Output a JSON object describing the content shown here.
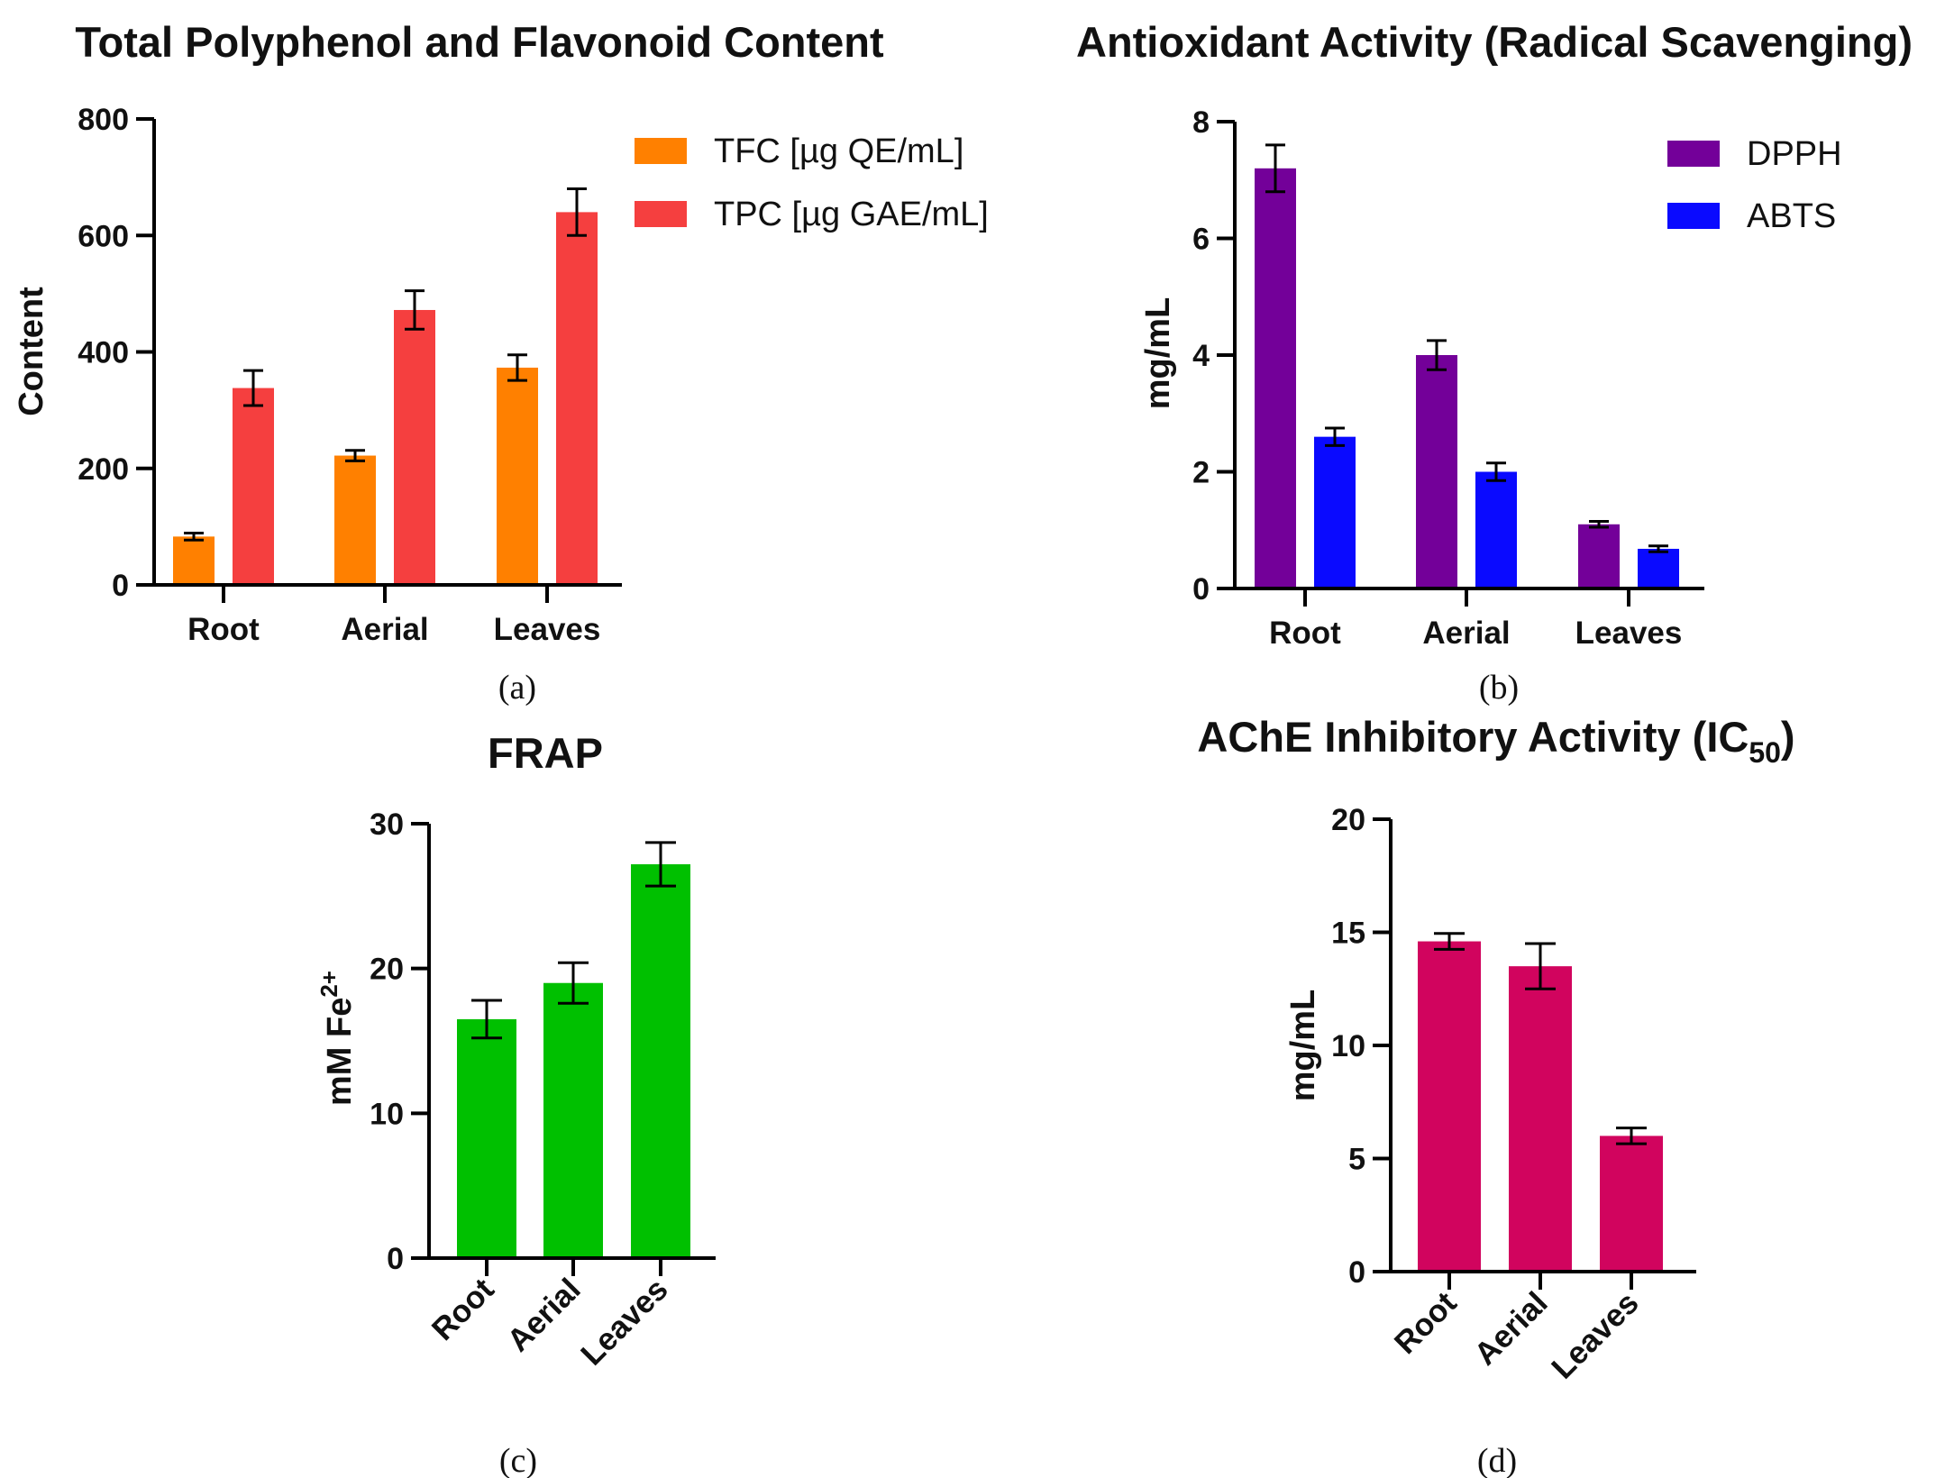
{
  "chart_data": [
    {
      "id": "a",
      "type": "bar",
      "title": "Total Polyphenol and Flavonoid Content",
      "panel_label": "(a)",
      "ylabel": "Content",
      "xlabel": "",
      "ylim": [
        0,
        800
      ],
      "yticks": [
        "0",
        "200",
        "400",
        "600",
        "800"
      ],
      "categories": [
        "Root",
        "Aerial",
        "Leaves"
      ],
      "legend_position": "right",
      "series": [
        {
          "name": "TFC [µg QE/mL]",
          "color": "#ff8000",
          "values": [
            83,
            222,
            373
          ],
          "errors": [
            6,
            9,
            22
          ]
        },
        {
          "name": "TPC [µg GAE/mL]",
          "color": "#f53f3f",
          "values": [
            338,
            472,
            640
          ],
          "errors": [
            30,
            33,
            40
          ]
        }
      ]
    },
    {
      "id": "b",
      "type": "bar",
      "title": "Antioxidant Activity (Radical Scavenging)",
      "panel_label": "(b)",
      "ylabel": "mg/mL",
      "xlabel": "",
      "ylim": [
        0,
        8
      ],
      "yticks": [
        "0",
        "2",
        "4",
        "6",
        "8"
      ],
      "categories": [
        "Root",
        "Aerial",
        "Leaves"
      ],
      "legend_position": "top-right",
      "series": [
        {
          "name": "DPPH",
          "color": "#730099",
          "values": [
            7.2,
            4.0,
            1.1
          ],
          "errors": [
            0.4,
            0.25,
            0.05
          ]
        },
        {
          "name": "ABTS",
          "color": "#0a0aff",
          "values": [
            2.6,
            2.0,
            0.68
          ],
          "errors": [
            0.15,
            0.15,
            0.05
          ]
        }
      ]
    },
    {
      "id": "c",
      "type": "bar",
      "title": "FRAP",
      "panel_label": "(c)",
      "ylabel_main": "mM Fe",
      "ylabel_sup": "2+",
      "xlabel": "",
      "ylim": [
        0,
        30
      ],
      "yticks": [
        "0",
        "10",
        "20",
        "30"
      ],
      "categories": [
        "Root",
        "Aerial",
        "Leaves"
      ],
      "series": [
        {
          "name": "FRAP",
          "color": "#00c000",
          "values": [
            16.5,
            19.0,
            27.2
          ],
          "errors": [
            1.3,
            1.4,
            1.5
          ]
        }
      ]
    },
    {
      "id": "d",
      "type": "bar",
      "title_main": "AChE Inhibitory Activity (IC",
      "title_sub": "50",
      "title_end": ")",
      "panel_label": "(d)",
      "ylabel": "mg/mL",
      "xlabel": "",
      "ylim": [
        0,
        20
      ],
      "yticks": [
        "0",
        "5",
        "10",
        "15",
        "20"
      ],
      "categories": [
        "Root",
        "Aerial",
        "Leaves"
      ],
      "series": [
        {
          "name": "AChE IC50",
          "color": "#d1045e",
          "values": [
            14.6,
            13.5,
            6.0
          ],
          "errors": [
            0.35,
            1.0,
            0.35
          ]
        }
      ]
    }
  ]
}
